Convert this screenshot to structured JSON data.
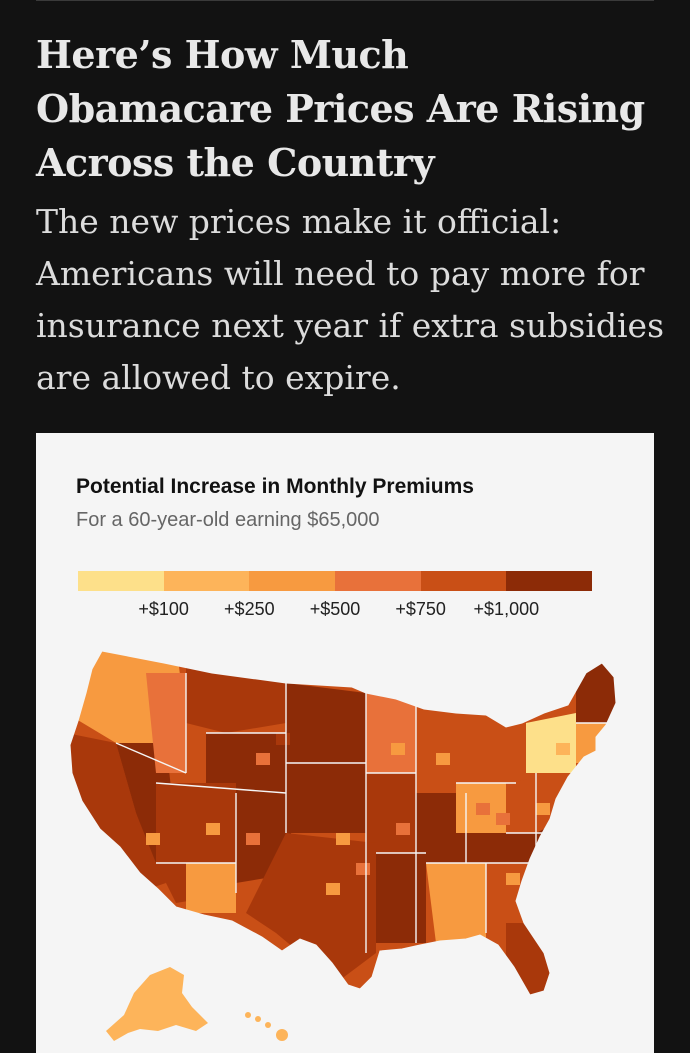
{
  "article": {
    "headline": "Here’s How Much Obamacare Prices Are Rising Across the Country",
    "dek": "The new prices make it official: Americans will need to pay more for insurance next year if extra subsidies are allowed to expire."
  },
  "map_card": {
    "title": "Potential Increase in Monthly Premiums",
    "subtitle": "For a 60-year-old earning $65,000",
    "legend": {
      "colors": [
        "#fde08a",
        "#fdb45a",
        "#f79a40",
        "#e8713a",
        "#c94f16",
        "#8c2b07"
      ],
      "labels": [
        "+$100",
        "+$250",
        "+$500",
        "+$750",
        "+$1,000"
      ]
    },
    "map_colors": {
      "dark": "#8c2b07",
      "dark2": "#a9380b",
      "mid": "#c94f16",
      "midlight": "#e8713a",
      "light": "#f79a40",
      "pale": "#fdb45a",
      "palest": "#fde08a",
      "border": "#f5f5f5"
    }
  }
}
